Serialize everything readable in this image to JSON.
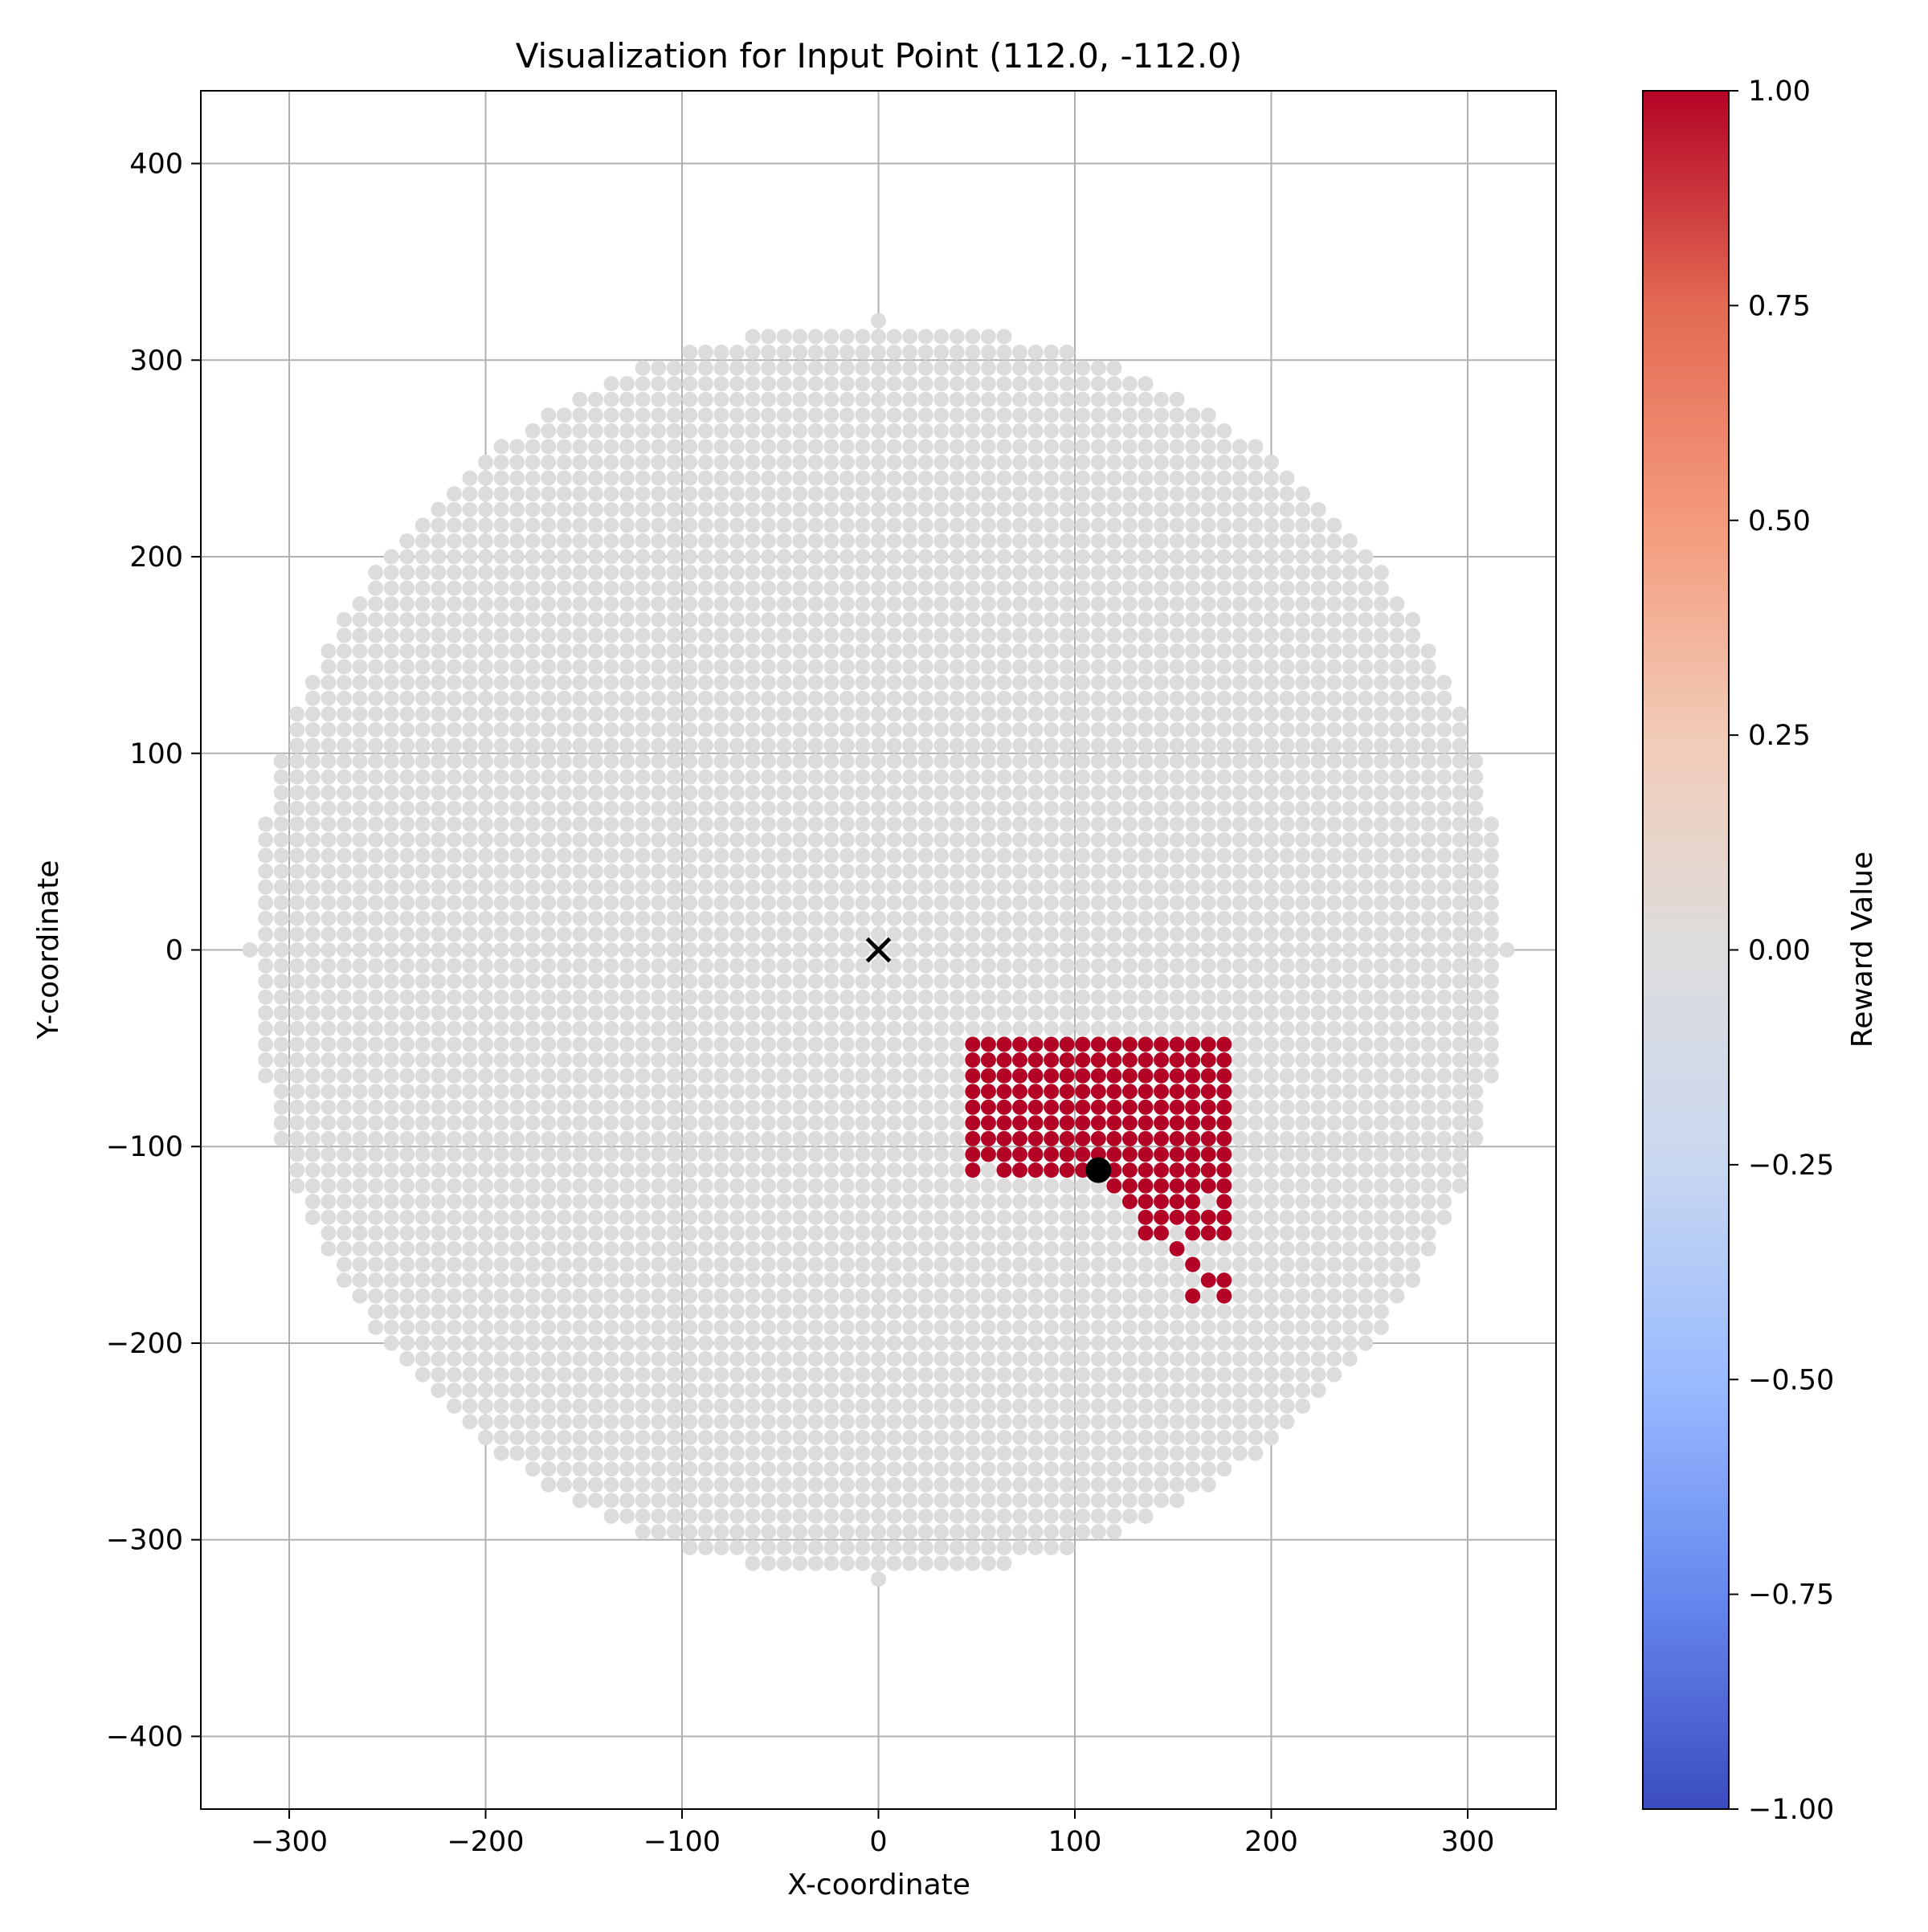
{
  "chart_data": {
    "type": "scatter",
    "title": "Visualization for Input Point (112.0, -112.0)",
    "xlabel": "X-coordinate",
    "ylabel": "Y-coordinate",
    "xlim": [
      -345,
      345
    ],
    "ylim": [
      -437,
      437
    ],
    "xticks": [
      -300,
      -200,
      -100,
      0,
      100,
      200,
      300
    ],
    "xtick_labels": [
      "−300",
      "−200",
      "−100",
      "0",
      "100",
      "200",
      "300"
    ],
    "yticks": [
      400,
      300,
      200,
      100,
      0,
      -100,
      -200,
      -300,
      -400
    ],
    "ytick_labels": [
      "400",
      "300",
      "200",
      "100",
      "0",
      "−100",
      "−200",
      "−300",
      "−400"
    ],
    "grid": true,
    "grid_spacing": 8,
    "grid_radius": 320,
    "background_points_value": 0.0,
    "background_point_color": "#dcdcdc",
    "highlight_value": 1.0,
    "highlight_color": "#b40426",
    "highlight_points": [
      [
        48,
        -48
      ],
      [
        56,
        -48
      ],
      [
        64,
        -48
      ],
      [
        72,
        -48
      ],
      [
        80,
        -48
      ],
      [
        88,
        -48
      ],
      [
        96,
        -48
      ],
      [
        104,
        -48
      ],
      [
        112,
        -48
      ],
      [
        120,
        -48
      ],
      [
        128,
        -48
      ],
      [
        136,
        -48
      ],
      [
        144,
        -48
      ],
      [
        152,
        -48
      ],
      [
        160,
        -48
      ],
      [
        168,
        -48
      ],
      [
        176,
        -48
      ],
      [
        48,
        -56
      ],
      [
        56,
        -56
      ],
      [
        64,
        -56
      ],
      [
        72,
        -56
      ],
      [
        80,
        -56
      ],
      [
        88,
        -56
      ],
      [
        96,
        -56
      ],
      [
        104,
        -56
      ],
      [
        112,
        -56
      ],
      [
        120,
        -56
      ],
      [
        128,
        -56
      ],
      [
        136,
        -56
      ],
      [
        144,
        -56
      ],
      [
        152,
        -56
      ],
      [
        160,
        -56
      ],
      [
        168,
        -56
      ],
      [
        176,
        -56
      ],
      [
        48,
        -64
      ],
      [
        56,
        -64
      ],
      [
        64,
        -64
      ],
      [
        72,
        -64
      ],
      [
        80,
        -64
      ],
      [
        88,
        -64
      ],
      [
        96,
        -64
      ],
      [
        104,
        -64
      ],
      [
        112,
        -64
      ],
      [
        120,
        -64
      ],
      [
        128,
        -64
      ],
      [
        136,
        -64
      ],
      [
        144,
        -64
      ],
      [
        152,
        -64
      ],
      [
        160,
        -64
      ],
      [
        168,
        -64
      ],
      [
        176,
        -64
      ],
      [
        48,
        -72
      ],
      [
        56,
        -72
      ],
      [
        64,
        -72
      ],
      [
        72,
        -72
      ],
      [
        80,
        -72
      ],
      [
        88,
        -72
      ],
      [
        96,
        -72
      ],
      [
        104,
        -72
      ],
      [
        112,
        -72
      ],
      [
        120,
        -72
      ],
      [
        128,
        -72
      ],
      [
        136,
        -72
      ],
      [
        144,
        -72
      ],
      [
        152,
        -72
      ],
      [
        160,
        -72
      ],
      [
        168,
        -72
      ],
      [
        176,
        -72
      ],
      [
        48,
        -80
      ],
      [
        56,
        -80
      ],
      [
        64,
        -80
      ],
      [
        72,
        -80
      ],
      [
        80,
        -80
      ],
      [
        88,
        -80
      ],
      [
        96,
        -80
      ],
      [
        104,
        -80
      ],
      [
        112,
        -80
      ],
      [
        120,
        -80
      ],
      [
        128,
        -80
      ],
      [
        136,
        -80
      ],
      [
        144,
        -80
      ],
      [
        152,
        -80
      ],
      [
        160,
        -80
      ],
      [
        168,
        -80
      ],
      [
        176,
        -80
      ],
      [
        48,
        -88
      ],
      [
        56,
        -88
      ],
      [
        64,
        -88
      ],
      [
        72,
        -88
      ],
      [
        80,
        -88
      ],
      [
        88,
        -88
      ],
      [
        96,
        -88
      ],
      [
        104,
        -88
      ],
      [
        112,
        -88
      ],
      [
        120,
        -88
      ],
      [
        128,
        -88
      ],
      [
        136,
        -88
      ],
      [
        144,
        -88
      ],
      [
        152,
        -88
      ],
      [
        160,
        -88
      ],
      [
        168,
        -88
      ],
      [
        176,
        -88
      ],
      [
        48,
        -96
      ],
      [
        56,
        -96
      ],
      [
        64,
        -96
      ],
      [
        72,
        -96
      ],
      [
        80,
        -96
      ],
      [
        88,
        -96
      ],
      [
        96,
        -96
      ],
      [
        104,
        -96
      ],
      [
        112,
        -96
      ],
      [
        120,
        -96
      ],
      [
        128,
        -96
      ],
      [
        136,
        -96
      ],
      [
        144,
        -96
      ],
      [
        152,
        -96
      ],
      [
        160,
        -96
      ],
      [
        168,
        -96
      ],
      [
        176,
        -96
      ],
      [
        48,
        -104
      ],
      [
        56,
        -104
      ],
      [
        64,
        -104
      ],
      [
        72,
        -104
      ],
      [
        80,
        -104
      ],
      [
        88,
        -104
      ],
      [
        96,
        -104
      ],
      [
        104,
        -104
      ],
      [
        112,
        -104
      ],
      [
        120,
        -104
      ],
      [
        128,
        -104
      ],
      [
        136,
        -104
      ],
      [
        144,
        -104
      ],
      [
        152,
        -104
      ],
      [
        160,
        -104
      ],
      [
        168,
        -104
      ],
      [
        176,
        -104
      ],
      [
        48,
        -112
      ],
      [
        64,
        -112
      ],
      [
        72,
        -112
      ],
      [
        80,
        -112
      ],
      [
        88,
        -112
      ],
      [
        96,
        -112
      ],
      [
        104,
        -112
      ],
      [
        120,
        -112
      ],
      [
        128,
        -112
      ],
      [
        136,
        -112
      ],
      [
        144,
        -112
      ],
      [
        152,
        -112
      ],
      [
        160,
        -112
      ],
      [
        168,
        -112
      ],
      [
        176,
        -112
      ],
      [
        120,
        -120
      ],
      [
        128,
        -120
      ],
      [
        136,
        -120
      ],
      [
        144,
        -120
      ],
      [
        152,
        -120
      ],
      [
        160,
        -120
      ],
      [
        168,
        -120
      ],
      [
        176,
        -120
      ],
      [
        128,
        -128
      ],
      [
        136,
        -128
      ],
      [
        144,
        -128
      ],
      [
        152,
        -128
      ],
      [
        160,
        -128
      ],
      [
        176,
        -128
      ],
      [
        136,
        -136
      ],
      [
        144,
        -136
      ],
      [
        152,
        -136
      ],
      [
        160,
        -136
      ],
      [
        168,
        -136
      ],
      [
        176,
        -136
      ],
      [
        136,
        -144
      ],
      [
        144,
        -144
      ],
      [
        160,
        -144
      ],
      [
        168,
        -144
      ],
      [
        176,
        -144
      ],
      [
        152,
        -152
      ],
      [
        160,
        -160
      ],
      [
        168,
        -168
      ],
      [
        176,
        -168
      ],
      [
        160,
        -176
      ],
      [
        176,
        -176
      ]
    ],
    "input_point": [
      112.0,
      -112.0
    ],
    "origin_marker": [
      0,
      0
    ],
    "colorbar": {
      "label": "Reward Value",
      "cmap": "coolwarm",
      "min": -1.0,
      "max": 1.0,
      "ticks": [
        1.0,
        0.75,
        0.5,
        0.25,
        0.0,
        -0.25,
        -0.5,
        -0.75,
        -1.0
      ],
      "tick_labels": [
        "1.00",
        "0.75",
        "0.50",
        "0.25",
        "0.00",
        "−0.25",
        "−0.50",
        "−0.75",
        "−1.00"
      ],
      "stops": [
        "#3b4cc0",
        "#6788ee",
        "#9abbff",
        "#c9d7f0",
        "#dddddd",
        "#f2cbb7",
        "#f49a7b",
        "#e36a53",
        "#b40426"
      ]
    }
  }
}
